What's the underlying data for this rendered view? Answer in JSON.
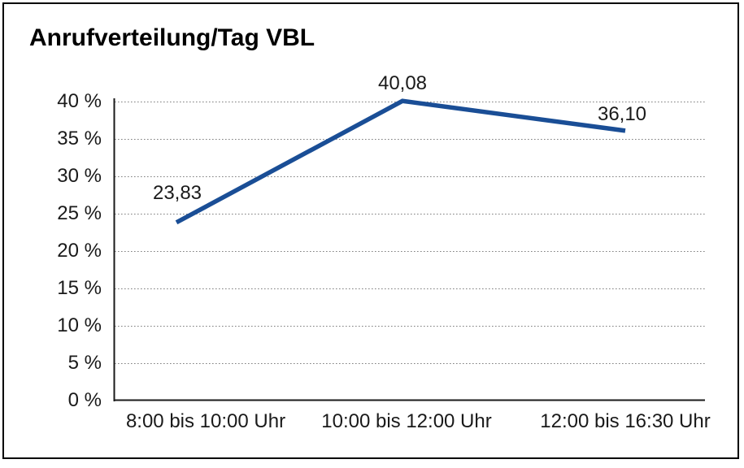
{
  "window": {
    "background_color": "#ffffff",
    "border_color": "#000000"
  },
  "chart_data": {
    "type": "line",
    "title": "Anrufverteilung/Tag VBL",
    "categories": [
      "8:00 bis 10:00 Uhr",
      "10:00 bis 12:00 Uhr",
      "12:00 bis 16:30 Uhr"
    ],
    "series": [
      {
        "name": "Anrufverteilung/Tag VBL",
        "values": [
          23.83,
          40.08,
          36.1
        ]
      }
    ],
    "point_labels": [
      "23,83",
      "40,08",
      "36,10"
    ],
    "yticks": [
      {
        "value": 0,
        "label": "0 %"
      },
      {
        "value": 5,
        "label": "5 %"
      },
      {
        "value": 10,
        "label": "10 %"
      },
      {
        "value": 15,
        "label": "15 %"
      },
      {
        "value": 20,
        "label": "20 %"
      },
      {
        "value": 25,
        "label": "25 %"
      },
      {
        "value": 30,
        "label": "30 %"
      },
      {
        "value": 35,
        "label": "35 %"
      },
      {
        "value": 40,
        "label": "40 %"
      }
    ],
    "xlabel": "",
    "ylabel": "",
    "ylim": [
      0,
      40
    ],
    "grid": "horizontal-dotted",
    "legend": "none",
    "colors": {
      "line": "#1a4e96",
      "gridline": "#808080",
      "axis": "#1a1a1a",
      "text": "#1a1a1a"
    }
  }
}
